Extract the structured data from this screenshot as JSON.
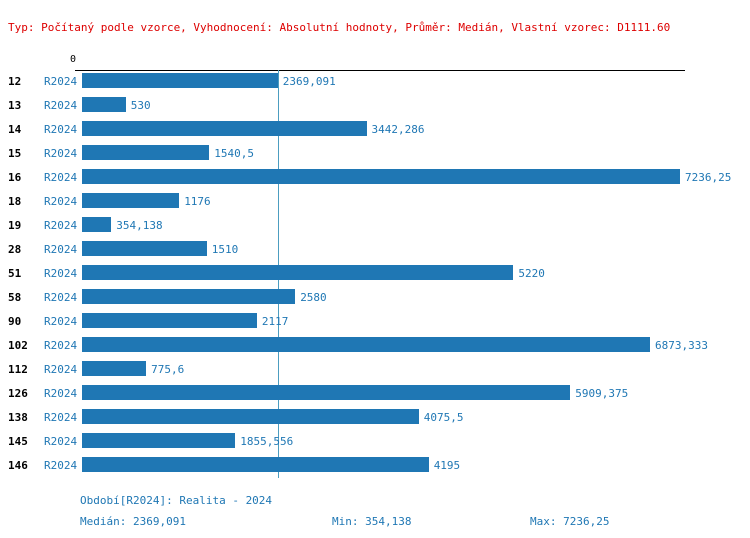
{
  "header": {
    "info_line": "Typ: Počítaný podle vzorce, Vyhodnocení: Absolutní hodnoty, Průměr: Medián, Vlastní vzorec: D1111.60"
  },
  "axis": {
    "zero_label": "0"
  },
  "chart_data": {
    "type": "bar",
    "orientation": "horizontal",
    "title": "",
    "xlabel": "",
    "ylabel": "",
    "xlim": [
      0,
      7236.25
    ],
    "grid": false,
    "legend": false,
    "series_label": "R2024",
    "categories": [
      "12",
      "13",
      "14",
      "15",
      "16",
      "18",
      "19",
      "28",
      "51",
      "58",
      "90",
      "102",
      "112",
      "126",
      "138",
      "145",
      "146"
    ],
    "values": [
      2369.091,
      530,
      3442.286,
      1540.5,
      7236.25,
      1176,
      354.138,
      1510,
      5220,
      2580,
      2117,
      6873.333,
      775.6,
      5909.375,
      4075.5,
      1855.556,
      4195
    ],
    "value_labels": [
      "2369,091",
      "530",
      "3442,286",
      "1540,5",
      "7236,25",
      "1176",
      "354,138",
      "1510",
      "5220",
      "2580",
      "2117",
      "6873,333",
      "775,6",
      "5909,375",
      "4075,5",
      "1855,556",
      "4195"
    ],
    "median": 2369.091,
    "min": 354.138,
    "max": 7236.25,
    "bar_color": "#1f77b4",
    "median_line_color": "#4c9dc0"
  },
  "footer": {
    "period": "Období[R2024]: Realita - 2024",
    "median": "Medián: 2369,091",
    "min": "Min: 354,138",
    "max": "Max: 7236,25"
  }
}
